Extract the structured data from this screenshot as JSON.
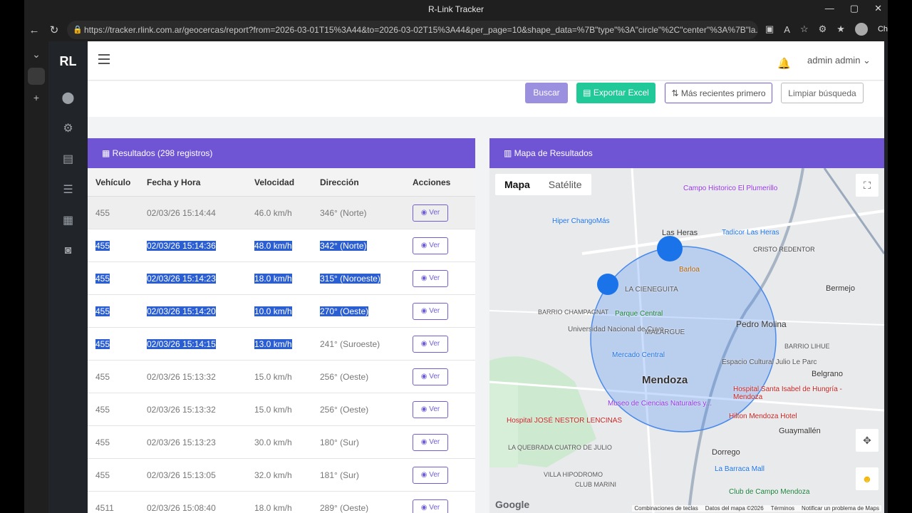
{
  "browser": {
    "window_title": "R-Link Tracker",
    "url": "https://tracker.rlink.com.ar/geocercas/report?from=2026-03-01T15%3A44&to=2026-03-02T15%3A44&per_page=10&shape_data=%7B\"type\"%3A\"circle\"%2C\"center\"%3A%7B\"la...",
    "chat_label": "Chat"
  },
  "app": {
    "logo": "RL",
    "user": "admin admin"
  },
  "filters": {
    "buscar": "Buscar",
    "exportar": "Exportar Excel",
    "orden": "Más recientes primero",
    "limpiar": "Limpiar búsqueda"
  },
  "results": {
    "title": "Resultados (298 registros)",
    "columns": [
      "Vehículo",
      "Fecha y Hora",
      "Velocidad",
      "Dirección",
      "Acciones"
    ],
    "action_label": "Ver",
    "rows": [
      {
        "vehiculo": "455",
        "fecha": "02/03/26 15:14:44",
        "velocidad": "46.0 km/h",
        "direccion": "346° (Norte)"
      },
      {
        "vehiculo": "455",
        "fecha": "02/03/26 15:14:36",
        "velocidad": "48.0 km/h",
        "direccion": "342° (Norte)"
      },
      {
        "vehiculo": "455",
        "fecha": "02/03/26 15:14:23",
        "velocidad": "18.0 km/h",
        "direccion": "315° (Noroeste)"
      },
      {
        "vehiculo": "455",
        "fecha": "02/03/26 15:14:20",
        "velocidad": "10.0 km/h",
        "direccion": "270° (Oeste)"
      },
      {
        "vehiculo": "455",
        "fecha": "02/03/26 15:14:15",
        "velocidad": "13.0 km/h",
        "direccion": "241° (Suroeste)"
      },
      {
        "vehiculo": "455",
        "fecha": "02/03/26 15:13:32",
        "velocidad": "15.0 km/h",
        "direccion": "256° (Oeste)"
      },
      {
        "vehiculo": "455",
        "fecha": "02/03/26 15:13:32",
        "velocidad": "15.0 km/h",
        "direccion": "256° (Oeste)"
      },
      {
        "vehiculo": "455",
        "fecha": "02/03/26 15:13:23",
        "velocidad": "30.0 km/h",
        "direccion": "180° (Sur)"
      },
      {
        "vehiculo": "455",
        "fecha": "02/03/26 15:13:05",
        "velocidad": "32.0 km/h",
        "direccion": "181° (Sur)"
      },
      {
        "vehiculo": "4511",
        "fecha": "02/03/26 15:08:40",
        "velocidad": "18.0 km/h",
        "direccion": "289° (Oeste)"
      }
    ]
  },
  "map": {
    "title": "Mapa de Resultados",
    "type_map": "Mapa",
    "type_sat": "Satélite",
    "google": "Google",
    "attr_keys": "Combinaciones de teclas",
    "attr_data": "Datos del mapa ©2026",
    "attr_terms": "Términos",
    "attr_report": "Notificar un problema de Maps",
    "labels": {
      "mendoza": "Mendoza",
      "las_heras": "Las Heras",
      "la_cieneguita": "LA CIENEGUITA",
      "malargue": "MALARGUE",
      "pedro_molina": "Pedro Molina",
      "dorrego": "Dorrego",
      "guaymallen": "Guaymallén",
      "belgrano": "Belgrano",
      "bermejo": "Bermejo",
      "barrio_lihue": "BARRIO LIHUE",
      "parque_central": "Parque Central",
      "mercado_central": "Mercado Central",
      "barlo": "Barloa",
      "hiper": "Hiper ChangoMás",
      "campo_historico": "Campo Historico El Plumerillo",
      "tadicor": "Tadicor Las Heras",
      "cristo": "CRISTO REDENTOR",
      "hospital_isabel": "Hospital Santa Isabel de Hungría - Mendoza",
      "hilton": "Hilton Mendoza Hotel",
      "la_barraca": "La Barraca Mall",
      "club_campo": "Club de Campo Mendoza",
      "hospital_lencinas": "Hospital JOSÉ NESTOR LENCINAS",
      "museo": "Museo de Ciencias Naturales y...",
      "espacio": "Espacio Cultural Julio Le Parc",
      "uncuyo": "Universidad Nacional de Cuyo",
      "barrio_champagnat": "BARRIO CHAMPAGNAT",
      "la_quebrada": "LA QUEBRADA CUATRO DE JULIO",
      "villa_hipodromo": "VILLA HIPODROMO",
      "club_marini": "CLUB MARINI"
    }
  }
}
